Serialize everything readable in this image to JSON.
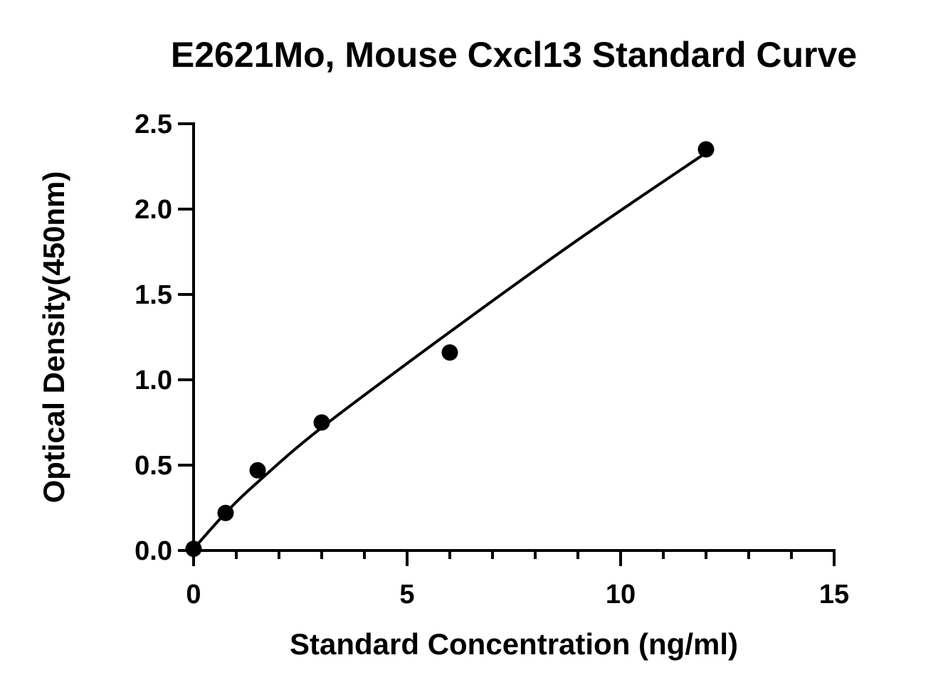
{
  "chart_data": {
    "type": "scatter",
    "title": "E2621Mo, Mouse Cxcl13 Standard Curve",
    "xlabel": "Standard Concentration (ng/ml)",
    "ylabel": "Optical Density(450nm)",
    "xlim": [
      0,
      15
    ],
    "ylim": [
      0,
      2.5
    ],
    "x_ticks": [
      "0",
      "5",
      "10",
      "15"
    ],
    "y_ticks": [
      "0.0",
      "0.5",
      "1.0",
      "1.5",
      "2.0",
      "2.5"
    ],
    "series": [
      {
        "x": [
          0,
          0.75,
          1.5,
          3,
          6,
          12
        ],
        "y": [
          0.01,
          0.22,
          0.47,
          0.75,
          1.16,
          2.35
        ]
      }
    ],
    "fit_curve": {
      "x": [
        0,
        0.75,
        1.5,
        3,
        6,
        9,
        12
      ],
      "y": [
        0.01,
        0.22,
        0.4,
        0.72,
        1.28,
        1.82,
        2.33
      ]
    },
    "grid": false,
    "legend": "none"
  }
}
